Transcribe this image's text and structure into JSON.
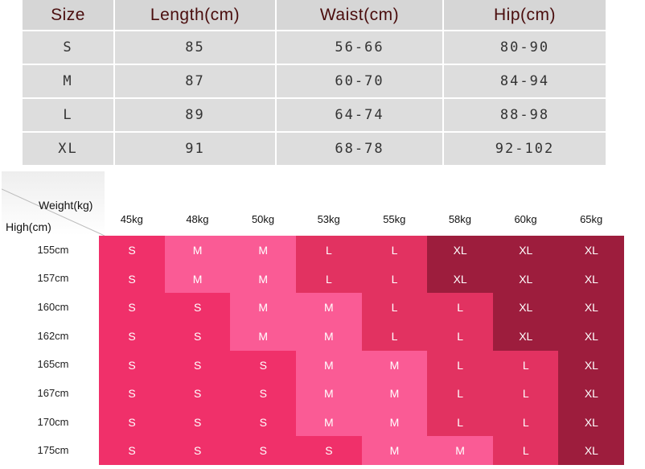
{
  "size_table": {
    "headers": [
      "Size",
      "Length(cm)",
      "Waist(cm)",
      "Hip(cm)"
    ],
    "rows": [
      [
        "S",
        "85",
        "56-66",
        "80-90"
      ],
      [
        "M",
        "87",
        "60-70",
        "84-94"
      ],
      [
        "L",
        "89",
        "64-74",
        "88-98"
      ],
      [
        "XL",
        "91",
        "68-78",
        "92-102"
      ]
    ]
  },
  "weight_chart": {
    "weight_label": "Weight(kg)",
    "height_label": "High(cm)",
    "weights": [
      "45kg",
      "48kg",
      "50kg",
      "53kg",
      "55kg",
      "58kg",
      "60kg",
      "65kg"
    ],
    "heights": [
      "155cm",
      "157cm",
      "160cm",
      "162cm",
      "165cm",
      "167cm",
      "170cm",
      "175cm"
    ],
    "sizes": [
      [
        "S",
        "M",
        "M",
        "L",
        "L",
        "XL",
        "XL",
        "XL"
      ],
      [
        "S",
        "M",
        "M",
        "L",
        "L",
        "XL",
        "XL",
        "XL"
      ],
      [
        "S",
        "S",
        "M",
        "M",
        "L",
        "L",
        "XL",
        "XL"
      ],
      [
        "S",
        "S",
        "M",
        "M",
        "L",
        "L",
        "XL",
        "XL"
      ],
      [
        "S",
        "S",
        "S",
        "M",
        "M",
        "L",
        "L",
        "XL"
      ],
      [
        "S",
        "S",
        "S",
        "M",
        "M",
        "L",
        "L",
        "XL"
      ],
      [
        "S",
        "S",
        "S",
        "M",
        "M",
        "L",
        "L",
        "XL"
      ],
      [
        "S",
        "S",
        "S",
        "S",
        "M",
        "M",
        "L",
        "XL"
      ]
    ],
    "size_colors": {
      "S": "#f0306a",
      "M": "#fa5b95",
      "L": "#e23261",
      "XL": "#9d1d3d"
    }
  }
}
